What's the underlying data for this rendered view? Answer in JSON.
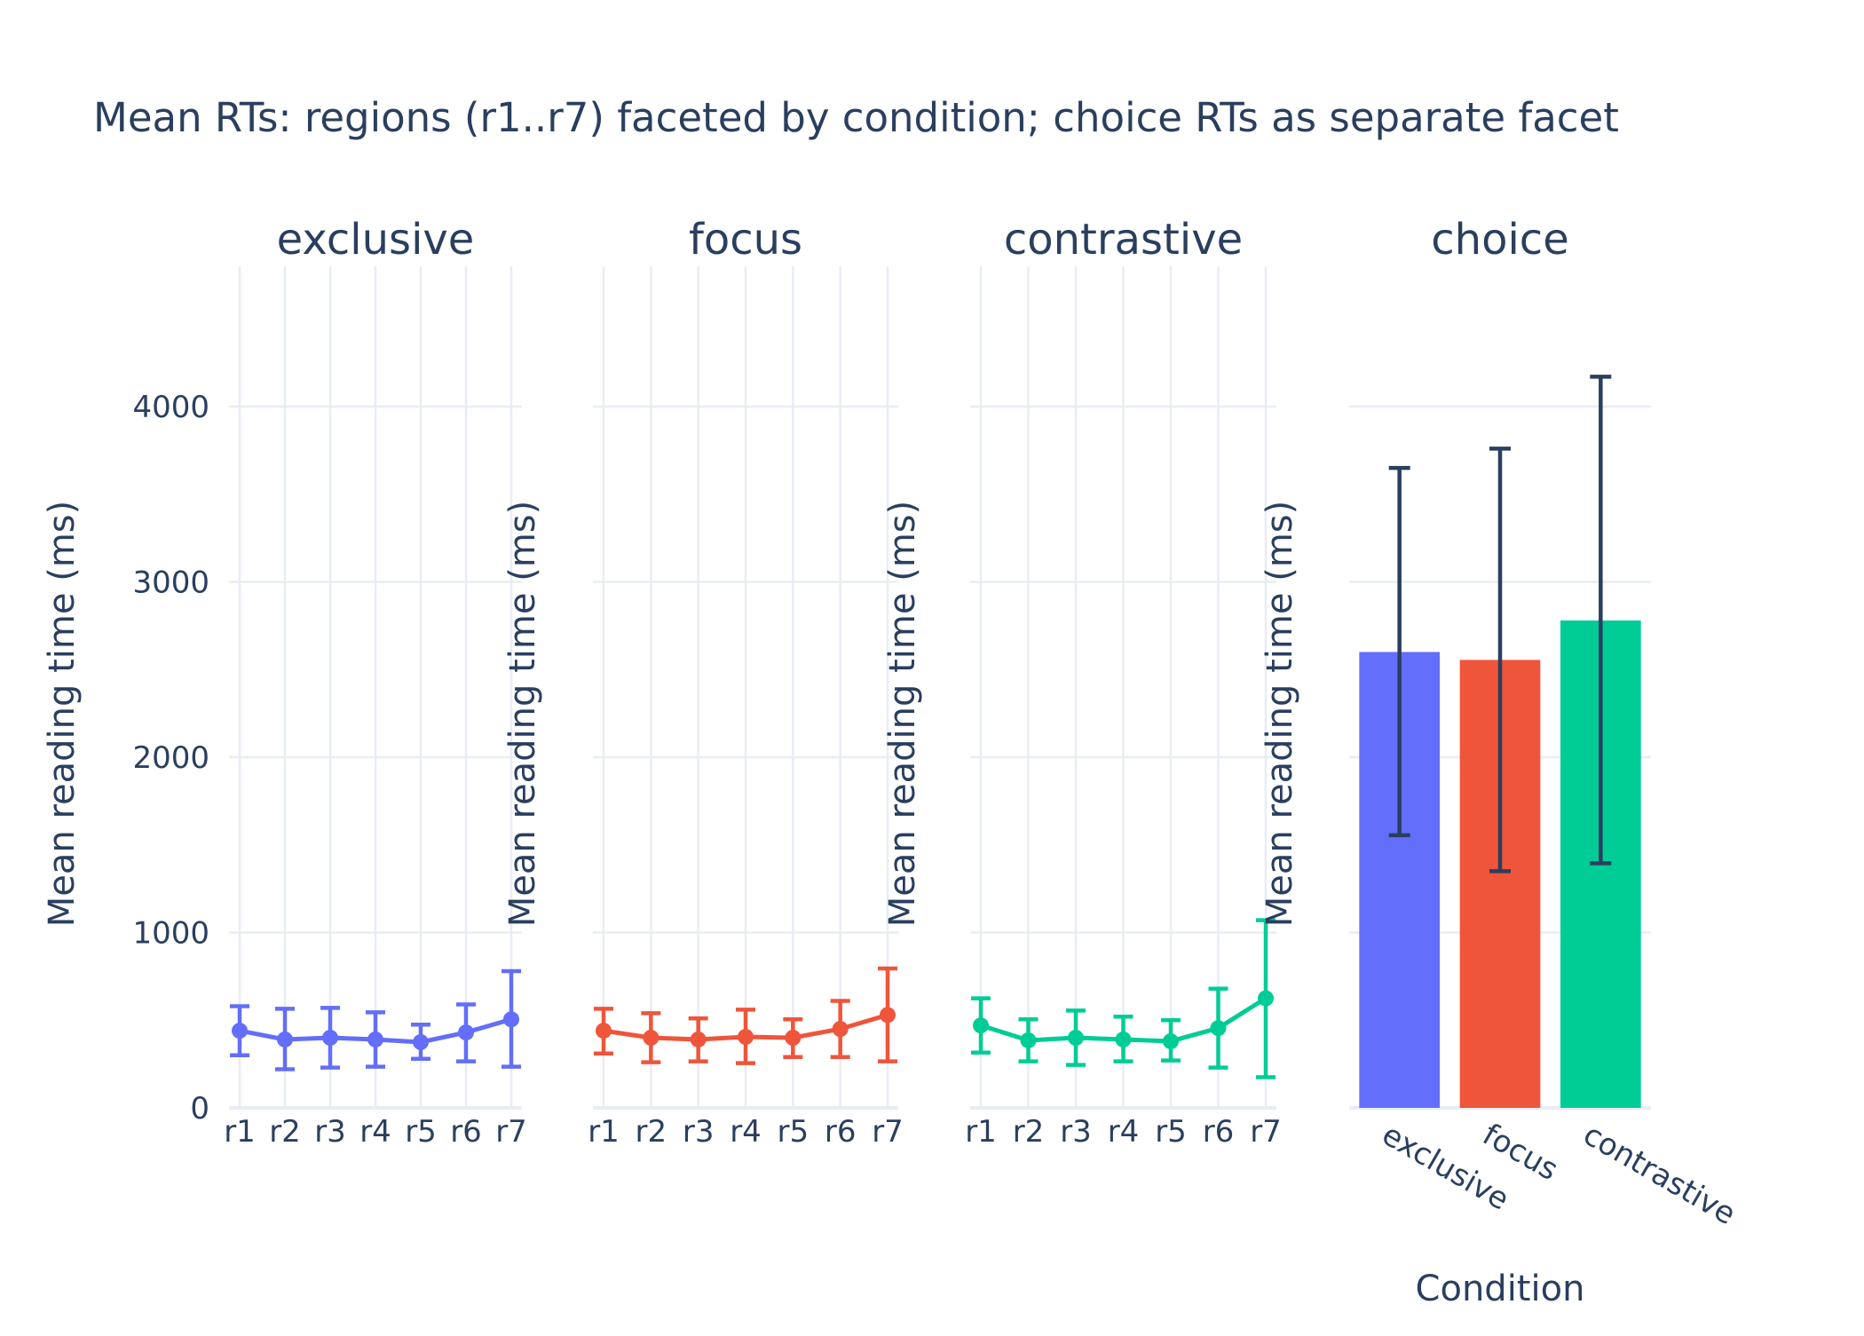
{
  "chart_data": {
    "type": "line",
    "title": "Mean RTs: regions (r1..r7) faceted by condition; choice RTs as separate facet",
    "ylabel": "Mean reading time (ms)",
    "ylim": [
      0,
      4800
    ],
    "y_ticks": [
      0,
      1000,
      2000,
      3000,
      4000
    ],
    "grid": true,
    "facets": [
      {
        "name": "exclusive",
        "type": "line",
        "color": "#636efa",
        "categories": [
          "r1",
          "r2",
          "r3",
          "r4",
          "r5",
          "r6",
          "r7"
        ],
        "values": [
          440,
          390,
          400,
          390,
          375,
          430,
          505
        ],
        "error_low": [
          300,
          220,
          230,
          235,
          280,
          265,
          235
        ],
        "error_high": [
          580,
          565,
          570,
          545,
          475,
          590,
          780
        ]
      },
      {
        "name": "focus",
        "type": "line",
        "color": "#ef553b",
        "categories": [
          "r1",
          "r2",
          "r3",
          "r4",
          "r5",
          "r6",
          "r7"
        ],
        "values": [
          440,
          400,
          390,
          405,
          400,
          450,
          530
        ],
        "error_low": [
          310,
          260,
          265,
          255,
          290,
          290,
          265
        ],
        "error_high": [
          565,
          540,
          510,
          560,
          505,
          610,
          795
        ]
      },
      {
        "name": "contrastive",
        "type": "line",
        "color": "#00cc96",
        "categories": [
          "r1",
          "r2",
          "r3",
          "r4",
          "r5",
          "r6",
          "r7"
        ],
        "values": [
          470,
          385,
          400,
          390,
          380,
          455,
          625
        ],
        "error_low": [
          315,
          265,
          245,
          265,
          270,
          230,
          175
        ],
        "error_high": [
          625,
          505,
          555,
          520,
          500,
          680,
          1070
        ]
      },
      {
        "name": "choice",
        "type": "bar",
        "xlabel": "Condition",
        "categories": [
          "exclusive",
          "focus",
          "contrastive"
        ],
        "colors": [
          "#636efa",
          "#ef553b",
          "#00cc96"
        ],
        "values": [
          2600,
          2555,
          2780
        ],
        "error_low": [
          1555,
          1350,
          1395
        ],
        "error_high": [
          3650,
          3760,
          4170
        ],
        "error_color": "#2a3f5f"
      }
    ]
  }
}
